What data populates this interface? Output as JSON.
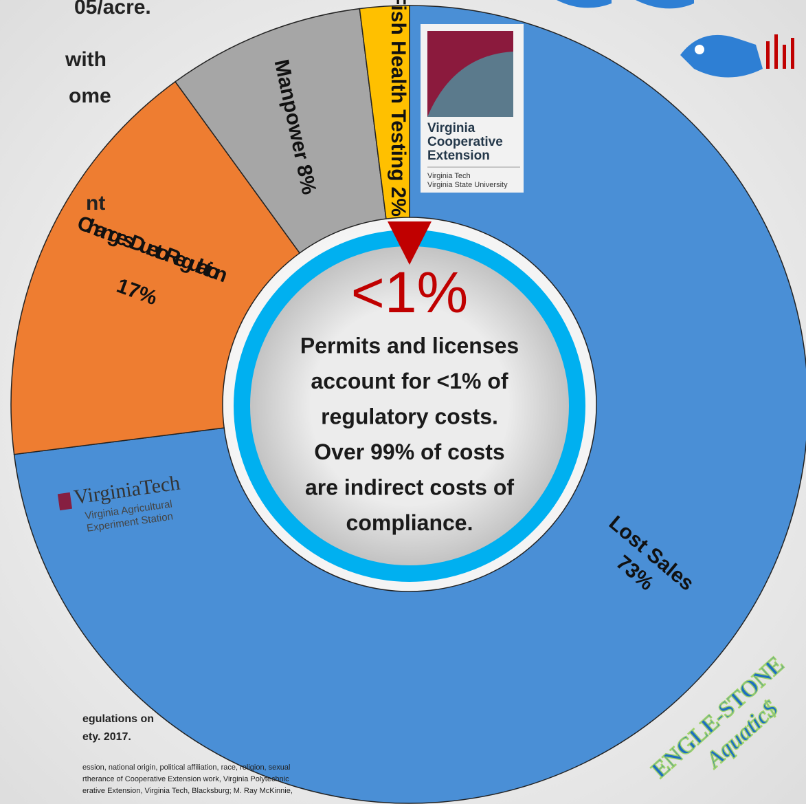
{
  "chart_data": {
    "type": "donut",
    "categories": [
      "Lost Sales",
      "Changes Due to Regulation",
      "Manpower",
      "Fish Health Testing"
    ],
    "values": [
      73,
      17,
      8,
      2
    ],
    "value_labels": [
      "73%",
      "17%",
      "8%",
      "2%"
    ],
    "colors": [
      "#4a8fd6",
      "#ee7d31",
      "#a6a6a6",
      "#ffc000"
    ],
    "center_value": "<1%",
    "center_text": [
      "Permits and licenses",
      "account for <1% of",
      "regulatory costs.",
      "Over 99% of costs",
      "are indirect costs of",
      "compliance."
    ]
  },
  "side_texts": [
    "05/acre.",
    "with",
    "ome",
    "nt",
    "egulations on",
    "ety. 2017."
  ],
  "footer": [
    "ession, national origin, political affiliation, race, religion, sexual",
    "rtherance of Cooperative Extension work, Virginia Polytechnic",
    "erative Extension, Virginia Tech, Blacksburg; M. Ray McKinnie,"
  ],
  "logos": {
    "vce": [
      "Virginia",
      "Cooperative",
      "Extension"
    ],
    "vce_sub": [
      "Virginia Tech",
      "Virginia State University"
    ],
    "vt": "VirginiaTech",
    "vt_sub": [
      "Virginia Agricultural",
      "Experiment Station"
    ],
    "engle": [
      "ENGLE-STONE",
      "Aquatic$"
    ]
  }
}
